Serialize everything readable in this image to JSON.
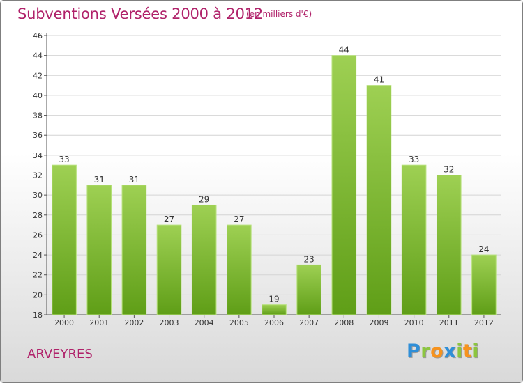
{
  "header": {
    "title": "Subventions Versées 2000 à 2012",
    "subtitle": "(en milliers d'€)"
  },
  "footer": {
    "commune": "ARVEYRES",
    "logo_letters": [
      {
        "char": "P",
        "color": "#2f8fd8"
      },
      {
        "char": "r",
        "color": "#8cc63f"
      },
      {
        "char": "o",
        "color": "#f7931e"
      },
      {
        "char": "x",
        "color": "#2f8fd8"
      },
      {
        "char": "i",
        "color": "#8cc63f"
      },
      {
        "char": "t",
        "color": "#f7931e"
      },
      {
        "char": "i",
        "color": "#8cc63f"
      }
    ]
  },
  "chart_data": {
    "type": "bar",
    "title": "Subventions Versées 2000 à 2012",
    "subtitle": "(en milliers d'€)",
    "categories": [
      "2000",
      "2001",
      "2002",
      "2003",
      "2004",
      "2005",
      "2006",
      "2007",
      "2008",
      "2009",
      "2010",
      "2011",
      "2012"
    ],
    "values": [
      33,
      31,
      31,
      27,
      29,
      27,
      19,
      23,
      44,
      41,
      33,
      32,
      24
    ],
    "ylim": [
      18,
      46
    ],
    "yticks": [
      "18",
      "20",
      "22",
      "24",
      "26",
      "28",
      "30",
      "32",
      "34",
      "36",
      "38",
      "40",
      "42",
      "44",
      "46"
    ],
    "grid": true,
    "bar_color_top": "#9ed053",
    "bar_color_bottom": "#5f9e17",
    "title_color": "#b0226a"
  }
}
